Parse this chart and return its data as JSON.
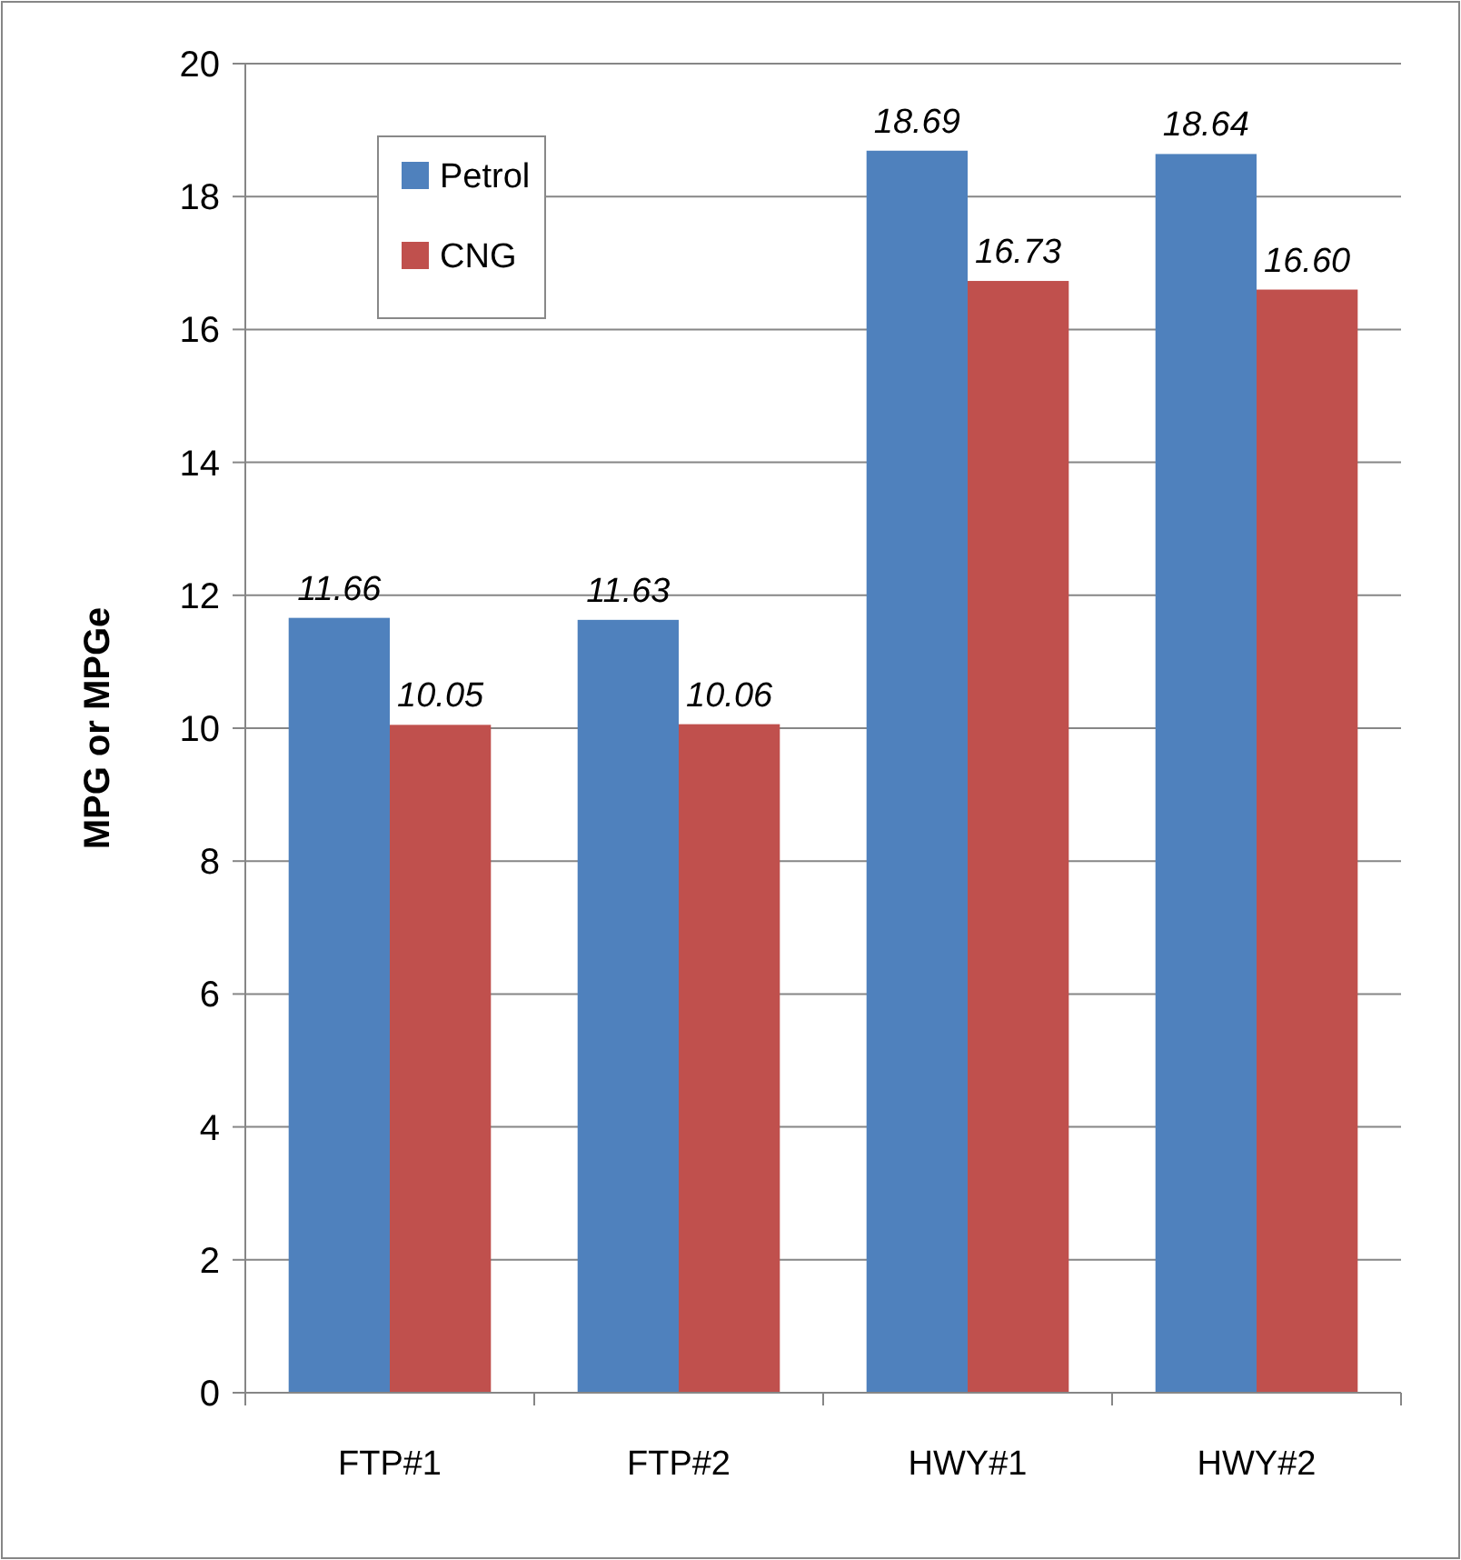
{
  "chart_data": {
    "type": "bar",
    "ylabel": "MPG or MPGe",
    "categories": [
      "FTP#1",
      "FTP#2",
      "HWY#1",
      "HWY#2"
    ],
    "series": [
      {
        "name": "Petrol",
        "color": "#4f81bd",
        "values": [
          11.66,
          11.63,
          18.69,
          18.64
        ],
        "value_labels": [
          "11.66",
          "11.63",
          "18.69",
          "18.64"
        ]
      },
      {
        "name": "CNG",
        "color": "#c0504d",
        "values": [
          10.05,
          10.06,
          16.73,
          16.6
        ],
        "value_labels": [
          "10.05",
          "10.06",
          "16.73",
          "16.60"
        ]
      }
    ],
    "ylim": [
      0,
      20
    ],
    "yticks": [
      0,
      2,
      4,
      6,
      8,
      10,
      12,
      14,
      16,
      18,
      20
    ],
    "grid": "y",
    "legend": "top left"
  }
}
